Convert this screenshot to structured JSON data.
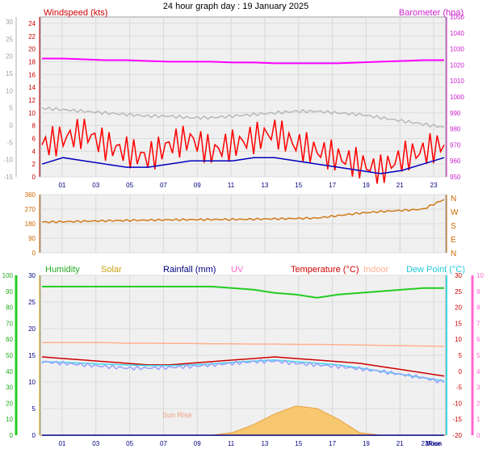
{
  "title": "24 hour graph day : 19 January 2025",
  "colors": {
    "wind_speed": "#ff0000",
    "wind_avg": "#0000c0",
    "barometer": "#ff00ff",
    "gray_trace": "#b8b8b8",
    "wind_dir": "#d07a1a",
    "humidity": "#22cc22",
    "solar": "#c8a010",
    "rainfall": "#000080",
    "uv": "#ff66cc",
    "temperature": "#cc0000",
    "indoor": "#ffb090",
    "dew_point": "#40d8e8",
    "purple_trace": "#9aa0ff",
    "solar_fill": "#f7c870"
  },
  "chart_data": [
    {
      "type": "line",
      "panel": "wind-barometer",
      "title": "",
      "x_ticks": [
        "01",
        "03",
        "05",
        "07",
        "09",
        "11",
        "13",
        "15",
        "17",
        "19",
        "21",
        "23"
      ],
      "left_axis": {
        "label": "Windspeed (kts)",
        "range": [
          0,
          25
        ],
        "ticks": [
          0,
          2,
          4,
          6,
          8,
          10,
          12,
          14,
          16,
          18,
          20,
          22,
          24
        ]
      },
      "outer_axis": {
        "range": [
          -15,
          30
        ],
        "ticks": [
          "-15",
          "-10",
          "-5",
          "0",
          "5",
          "10",
          "15",
          "20",
          "25",
          "30"
        ]
      },
      "right_axis": {
        "label": "Barometer (hpa)",
        "range": [
          950,
          1050
        ],
        "ticks": [
          950,
          960,
          970,
          980,
          990,
          1000,
          1010,
          1020,
          1030,
          1040,
          1050
        ]
      },
      "series": [
        {
          "name": "",
          "color_key": "wind_speed",
          "axis": "left",
          "values": [
            5,
            6,
            7,
            5,
            4,
            3,
            5,
            6,
            4,
            5,
            6,
            7,
            5,
            4,
            3,
            2,
            1,
            3,
            4,
            5
          ]
        },
        {
          "name": "",
          "color_key": "wind_avg",
          "axis": "left",
          "values": [
            2,
            3,
            2.5,
            2,
            1.5,
            1.5,
            2,
            2.5,
            2.5,
            2.5,
            3,
            3,
            2.5,
            2,
            1.5,
            1,
            0.5,
            1,
            2,
            3
          ]
        },
        {
          "name": "",
          "color_key": "barometer",
          "axis": "right",
          "values": [
            1024,
            1024,
            1023.5,
            1023,
            1023,
            1022.5,
            1022,
            1022,
            1022,
            1021.5,
            1021.5,
            1021,
            1021,
            1021,
            1021,
            1021.5,
            1022,
            1022.5,
            1023,
            1023
          ]
        },
        {
          "name": "",
          "color_key": "gray_trace",
          "axis": "right",
          "values": [
            993,
            992,
            991,
            990,
            989,
            988,
            988,
            987,
            987,
            988,
            989,
            990,
            991,
            991,
            990,
            989,
            987,
            985,
            983,
            981
          ]
        }
      ]
    },
    {
      "type": "line",
      "panel": "wind-direction",
      "title": "",
      "left_axis": {
        "range": [
          0,
          360
        ],
        "ticks": [
          0,
          90,
          180,
          270,
          360
        ]
      },
      "right_labels": [
        "N",
        "W",
        "S",
        "E",
        "N"
      ],
      "series": [
        {
          "name": "",
          "color_key": "wind_dir",
          "values": [
            190,
            192,
            195,
            198,
            200,
            202,
            204,
            205,
            206,
            206,
            208,
            210,
            212,
            215,
            230,
            245,
            255,
            262,
            270,
            330
          ]
        }
      ]
    },
    {
      "type": "line",
      "panel": "temperature-humidity",
      "title": "",
      "x_ticks": [
        "01",
        "03",
        "05",
        "07",
        "09",
        "11",
        "13",
        "15",
        "17",
        "19",
        "21",
        "Moon"
      ],
      "x_extra_labels": [
        "23",
        "Rise"
      ],
      "annotations": [
        "Sun Rise"
      ],
      "legend": [
        "Humidity",
        "Solar",
        "Rainfall (mm)",
        "UV",
        "Temperature (°C)",
        "Indoor",
        "Dew Point (°C)"
      ],
      "humidity_axis": {
        "range": [
          0,
          100
        ],
        "ticks": [
          0,
          10,
          20,
          30,
          40,
          50,
          60,
          70,
          80,
          90,
          100
        ]
      },
      "left_axis": {
        "range": [
          0,
          30
        ],
        "ticks": [
          0,
          5,
          10,
          15,
          20,
          25,
          30
        ]
      },
      "right_axis": {
        "range": [
          -20,
          30
        ],
        "ticks": [
          -20,
          -15,
          -10,
          -5,
          0,
          5,
          10,
          15,
          20,
          25,
          30
        ]
      },
      "uv_axis": {
        "range": [
          0,
          10
        ],
        "ticks": [
          0,
          1,
          2,
          3,
          4,
          5,
          6,
          7,
          8,
          9,
          10
        ]
      },
      "series": [
        {
          "name": "Humidity",
          "color_key": "humidity",
          "axis": "humidity",
          "values": [
            93,
            93,
            93,
            93,
            93,
            93,
            93,
            93,
            93,
            92,
            91,
            89,
            88,
            86,
            88,
            89,
            90,
            91,
            92,
            92
          ]
        },
        {
          "name": "Temperature (°C)",
          "color_key": "temperature",
          "axis": "right",
          "values": [
            4.5,
            4.0,
            3.5,
            3.0,
            2.5,
            2.0,
            2.0,
            2.5,
            3.0,
            3.5,
            4.0,
            4.5,
            4.0,
            3.5,
            3.0,
            2.5,
            1.5,
            0.5,
            -0.5,
            -1.5
          ]
        },
        {
          "name": "Indoor",
          "color_key": "indoor",
          "axis": "right",
          "values": [
            9.0,
            9.0,
            9.0,
            9.0,
            8.8,
            8.8,
            8.7,
            8.7,
            8.6,
            8.6,
            8.5,
            8.5,
            8.4,
            8.4,
            8.3,
            8.2,
            8.1,
            8.0,
            7.9,
            7.8
          ]
        },
        {
          "name": "Dew Point (°C)",
          "color_key": "dew_point",
          "axis": "right",
          "values": [
            3.0,
            2.8,
            2.5,
            2.2,
            2.0,
            1.8,
            1.8,
            2.0,
            2.3,
            2.8,
            3.2,
            3.5,
            3.0,
            2.5,
            2.0,
            1.0,
            0.0,
            -1.0,
            -2.0,
            -3.0
          ]
        },
        {
          "name": "",
          "color_key": "purple_trace",
          "axis": "right",
          "values": [
            3.0,
            2.5,
            2.0,
            1.5,
            1.0,
            1.0,
            1.2,
            1.5,
            2.0,
            2.5,
            3.0,
            3.2,
            2.5,
            2.0,
            1.5,
            0.8,
            0.0,
            -1.0,
            -2.0,
            -3.5
          ]
        },
        {
          "name": "Solar",
          "color_key": "solar_fill",
          "axis": "left",
          "values": [
            0,
            0,
            0,
            0,
            0,
            0,
            0,
            0,
            0,
            0.5,
            2.0,
            4.0,
            5.5,
            5.0,
            3.0,
            0.5,
            0,
            0,
            0,
            0
          ]
        },
        {
          "name": "Rainfall (mm)",
          "color_key": "rainfall",
          "axis": "left",
          "values": [
            0,
            0,
            0,
            0,
            0,
            0,
            0,
            0,
            0,
            0,
            0,
            0,
            0,
            0,
            0,
            0,
            0,
            0,
            0,
            0
          ]
        }
      ]
    }
  ]
}
